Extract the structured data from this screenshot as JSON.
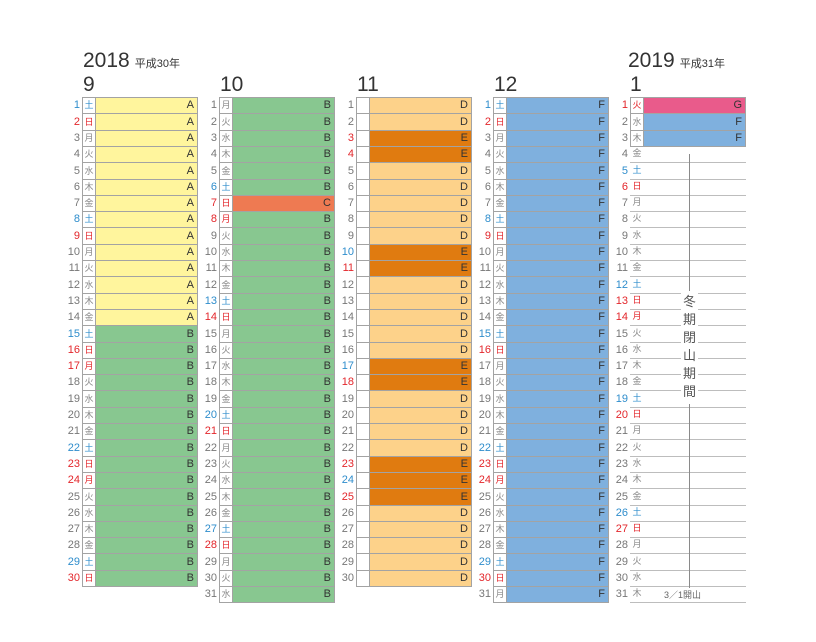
{
  "headers": {
    "year_2018": "2018",
    "era_2018": "平成30年",
    "year_2019": "2019",
    "era_2019": "平成31年"
  },
  "label_colors": {
    "A": "#fff59d",
    "B": "#88c790",
    "C": "#ee7a52",
    "D": "#fdd28a",
    "E": "#e07b10",
    "F": "#7fb0de",
    "G": "#e95b8b"
  },
  "months": [
    {
      "label": "9",
      "days": [
        {
          "d": "1",
          "w": "土",
          "c": "#2e8dcc",
          "label": "A"
        },
        {
          "d": "2",
          "w": "日",
          "c": "#e3262b",
          "label": "A"
        },
        {
          "d": "3",
          "w": "月",
          "label": "A"
        },
        {
          "d": "4",
          "w": "火",
          "label": "A"
        },
        {
          "d": "5",
          "w": "水",
          "label": "A"
        },
        {
          "d": "6",
          "w": "木",
          "label": "A"
        },
        {
          "d": "7",
          "w": "金",
          "label": "A"
        },
        {
          "d": "8",
          "w": "土",
          "c": "#2e8dcc",
          "label": "A"
        },
        {
          "d": "9",
          "w": "日",
          "c": "#e3262b",
          "label": "A"
        },
        {
          "d": "10",
          "w": "月",
          "label": "A"
        },
        {
          "d": "11",
          "w": "火",
          "label": "A"
        },
        {
          "d": "12",
          "w": "水",
          "label": "A"
        },
        {
          "d": "13",
          "w": "木",
          "label": "A"
        },
        {
          "d": "14",
          "w": "金",
          "label": "A"
        },
        {
          "d": "15",
          "w": "土",
          "c": "#2e8dcc",
          "label": "B"
        },
        {
          "d": "16",
          "w": "日",
          "c": "#e3262b",
          "label": "B"
        },
        {
          "d": "17",
          "w": "月",
          "c": "#e3262b",
          "label": "B"
        },
        {
          "d": "18",
          "w": "火",
          "label": "B"
        },
        {
          "d": "19",
          "w": "水",
          "label": "B"
        },
        {
          "d": "20",
          "w": "木",
          "label": "B"
        },
        {
          "d": "21",
          "w": "金",
          "label": "B"
        },
        {
          "d": "22",
          "w": "土",
          "c": "#2e8dcc",
          "label": "B"
        },
        {
          "d": "23",
          "w": "日",
          "c": "#e3262b",
          "label": "B"
        },
        {
          "d": "24",
          "w": "月",
          "c": "#e3262b",
          "label": "B"
        },
        {
          "d": "25",
          "w": "火",
          "label": "B"
        },
        {
          "d": "26",
          "w": "水",
          "label": "B"
        },
        {
          "d": "27",
          "w": "木",
          "label": "B"
        },
        {
          "d": "28",
          "w": "金",
          "label": "B"
        },
        {
          "d": "29",
          "w": "土",
          "c": "#2e8dcc",
          "label": "B"
        },
        {
          "d": "30",
          "w": "日",
          "c": "#e3262b",
          "label": "B"
        }
      ]
    },
    {
      "label": "10",
      "days": [
        {
          "d": "1",
          "w": "月",
          "label": "B"
        },
        {
          "d": "2",
          "w": "火",
          "label": "B"
        },
        {
          "d": "3",
          "w": "水",
          "label": "B"
        },
        {
          "d": "4",
          "w": "木",
          "label": "B"
        },
        {
          "d": "5",
          "w": "金",
          "label": "B"
        },
        {
          "d": "6",
          "w": "土",
          "c": "#2e8dcc",
          "label": "B"
        },
        {
          "d": "7",
          "w": "日",
          "c": "#e3262b",
          "label": "C"
        },
        {
          "d": "8",
          "w": "月",
          "c": "#e3262b",
          "label": "B"
        },
        {
          "d": "9",
          "w": "火",
          "label": "B"
        },
        {
          "d": "10",
          "w": "水",
          "label": "B"
        },
        {
          "d": "11",
          "w": "木",
          "label": "B"
        },
        {
          "d": "12",
          "w": "金",
          "label": "B"
        },
        {
          "d": "13",
          "w": "土",
          "c": "#2e8dcc",
          "label": "B"
        },
        {
          "d": "14",
          "w": "日",
          "c": "#e3262b",
          "label": "B"
        },
        {
          "d": "15",
          "w": "月",
          "label": "B"
        },
        {
          "d": "16",
          "w": "火",
          "label": "B"
        },
        {
          "d": "17",
          "w": "水",
          "label": "B"
        },
        {
          "d": "18",
          "w": "木",
          "label": "B"
        },
        {
          "d": "19",
          "w": "金",
          "label": "B"
        },
        {
          "d": "20",
          "w": "土",
          "c": "#2e8dcc",
          "label": "B"
        },
        {
          "d": "21",
          "w": "日",
          "c": "#e3262b",
          "label": "B"
        },
        {
          "d": "22",
          "w": "月",
          "label": "B"
        },
        {
          "d": "23",
          "w": "火",
          "label": "B"
        },
        {
          "d": "24",
          "w": "水",
          "label": "B"
        },
        {
          "d": "25",
          "w": "木",
          "label": "B"
        },
        {
          "d": "26",
          "w": "金",
          "label": "B"
        },
        {
          "d": "27",
          "w": "土",
          "c": "#2e8dcc",
          "label": "B"
        },
        {
          "d": "28",
          "w": "日",
          "c": "#e3262b",
          "label": "B"
        },
        {
          "d": "29",
          "w": "月",
          "label": "B"
        },
        {
          "d": "30",
          "w": "火",
          "label": "B"
        },
        {
          "d": "31",
          "w": "水",
          "label": "B"
        }
      ]
    },
    {
      "label": "11",
      "days": [
        {
          "d": "1",
          "w": "",
          "label": "D"
        },
        {
          "d": "2",
          "w": "",
          "label": "D"
        },
        {
          "d": "3",
          "w": "",
          "c": "#e3262b",
          "label": "E"
        },
        {
          "d": "4",
          "w": "",
          "c": "#e3262b",
          "label": "E"
        },
        {
          "d": "5",
          "w": "",
          "label": "D"
        },
        {
          "d": "6",
          "w": "",
          "label": "D"
        },
        {
          "d": "7",
          "w": "",
          "label": "D"
        },
        {
          "d": "8",
          "w": "",
          "label": "D"
        },
        {
          "d": "9",
          "w": "",
          "label": "D"
        },
        {
          "d": "10",
          "w": "",
          "c": "#2e8dcc",
          "label": "E"
        },
        {
          "d": "11",
          "w": "",
          "c": "#e3262b",
          "label": "E"
        },
        {
          "d": "12",
          "w": "",
          "label": "D"
        },
        {
          "d": "13",
          "w": "",
          "label": "D"
        },
        {
          "d": "14",
          "w": "",
          "label": "D"
        },
        {
          "d": "15",
          "w": "",
          "label": "D"
        },
        {
          "d": "16",
          "w": "",
          "label": "D"
        },
        {
          "d": "17",
          "w": "",
          "c": "#2e8dcc",
          "label": "E"
        },
        {
          "d": "18",
          "w": "",
          "c": "#e3262b",
          "label": "E"
        },
        {
          "d": "19",
          "w": "",
          "label": "D"
        },
        {
          "d": "20",
          "w": "",
          "label": "D"
        },
        {
          "d": "21",
          "w": "",
          "label": "D"
        },
        {
          "d": "22",
          "w": "",
          "label": "D"
        },
        {
          "d": "23",
          "w": "",
          "c": "#e3262b",
          "label": "E"
        },
        {
          "d": "24",
          "w": "",
          "c": "#2e8dcc",
          "label": "E"
        },
        {
          "d": "25",
          "w": "",
          "c": "#e3262b",
          "label": "E"
        },
        {
          "d": "26",
          "w": "",
          "label": "D"
        },
        {
          "d": "27",
          "w": "",
          "label": "D"
        },
        {
          "d": "28",
          "w": "",
          "label": "D"
        },
        {
          "d": "29",
          "w": "",
          "label": "D"
        },
        {
          "d": "30",
          "w": "",
          "label": "D"
        }
      ]
    },
    {
      "label": "12",
      "days": [
        {
          "d": "1",
          "w": "土",
          "c": "#2e8dcc",
          "label": "F"
        },
        {
          "d": "2",
          "w": "日",
          "c": "#e3262b",
          "label": "F"
        },
        {
          "d": "3",
          "w": "月",
          "label": "F"
        },
        {
          "d": "4",
          "w": "火",
          "label": "F"
        },
        {
          "d": "5",
          "w": "水",
          "label": "F"
        },
        {
          "d": "6",
          "w": "木",
          "label": "F"
        },
        {
          "d": "7",
          "w": "金",
          "label": "F"
        },
        {
          "d": "8",
          "w": "土",
          "c": "#2e8dcc",
          "label": "F"
        },
        {
          "d": "9",
          "w": "日",
          "c": "#e3262b",
          "label": "F"
        },
        {
          "d": "10",
          "w": "月",
          "label": "F"
        },
        {
          "d": "11",
          "w": "火",
          "label": "F"
        },
        {
          "d": "12",
          "w": "水",
          "label": "F"
        },
        {
          "d": "13",
          "w": "木",
          "label": "F"
        },
        {
          "d": "14",
          "w": "金",
          "label": "F"
        },
        {
          "d": "15",
          "w": "土",
          "c": "#2e8dcc",
          "label": "F"
        },
        {
          "d": "16",
          "w": "日",
          "c": "#e3262b",
          "label": "F"
        },
        {
          "d": "17",
          "w": "月",
          "label": "F"
        },
        {
          "d": "18",
          "w": "火",
          "label": "F"
        },
        {
          "d": "19",
          "w": "水",
          "label": "F"
        },
        {
          "d": "20",
          "w": "木",
          "label": "F"
        },
        {
          "d": "21",
          "w": "金",
          "label": "F"
        },
        {
          "d": "22",
          "w": "土",
          "c": "#2e8dcc",
          "label": "F"
        },
        {
          "d": "23",
          "w": "日",
          "c": "#e3262b",
          "label": "F"
        },
        {
          "d": "24",
          "w": "月",
          "c": "#e3262b",
          "label": "F"
        },
        {
          "d": "25",
          "w": "火",
          "label": "F"
        },
        {
          "d": "26",
          "w": "水",
          "label": "F"
        },
        {
          "d": "27",
          "w": "木",
          "label": "F"
        },
        {
          "d": "28",
          "w": "金",
          "label": "F"
        },
        {
          "d": "29",
          "w": "土",
          "c": "#2e8dcc",
          "label": "F"
        },
        {
          "d": "30",
          "w": "日",
          "c": "#e3262b",
          "label": "F"
        },
        {
          "d": "31",
          "w": "月",
          "label": "F"
        }
      ]
    },
    {
      "label": "1",
      "days": [
        {
          "d": "1",
          "w": "火",
          "c": "#e3262b",
          "label": "G"
        },
        {
          "d": "2",
          "w": "水",
          "label": "F"
        },
        {
          "d": "3",
          "w": "木",
          "label": "F"
        },
        {
          "d": "4",
          "w": "金"
        },
        {
          "d": "5",
          "w": "土",
          "c": "#2e8dcc"
        },
        {
          "d": "6",
          "w": "日",
          "c": "#e3262b"
        },
        {
          "d": "7",
          "w": "月"
        },
        {
          "d": "8",
          "w": "火"
        },
        {
          "d": "9",
          "w": "水"
        },
        {
          "d": "10",
          "w": "木"
        },
        {
          "d": "11",
          "w": "金"
        },
        {
          "d": "12",
          "w": "土",
          "c": "#2e8dcc"
        },
        {
          "d": "13",
          "w": "日",
          "c": "#e3262b"
        },
        {
          "d": "14",
          "w": "月",
          "c": "#e3262b"
        },
        {
          "d": "15",
          "w": "火"
        },
        {
          "d": "16",
          "w": "水"
        },
        {
          "d": "17",
          "w": "木"
        },
        {
          "d": "18",
          "w": "金"
        },
        {
          "d": "19",
          "w": "土",
          "c": "#2e8dcc"
        },
        {
          "d": "20",
          "w": "日",
          "c": "#e3262b"
        },
        {
          "d": "21",
          "w": "月"
        },
        {
          "d": "22",
          "w": "火"
        },
        {
          "d": "23",
          "w": "水"
        },
        {
          "d": "24",
          "w": "木"
        },
        {
          "d": "25",
          "w": "金"
        },
        {
          "d": "26",
          "w": "土",
          "c": "#2e8dcc"
        },
        {
          "d": "27",
          "w": "日",
          "c": "#e3262b"
        },
        {
          "d": "28",
          "w": "月"
        },
        {
          "d": "29",
          "w": "火"
        },
        {
          "d": "30",
          "w": "水"
        },
        {
          "d": "31",
          "w": "木"
        }
      ]
    }
  ],
  "closure": {
    "vertical_text": "冬期閉山期間",
    "reopen": "3／1開山"
  }
}
